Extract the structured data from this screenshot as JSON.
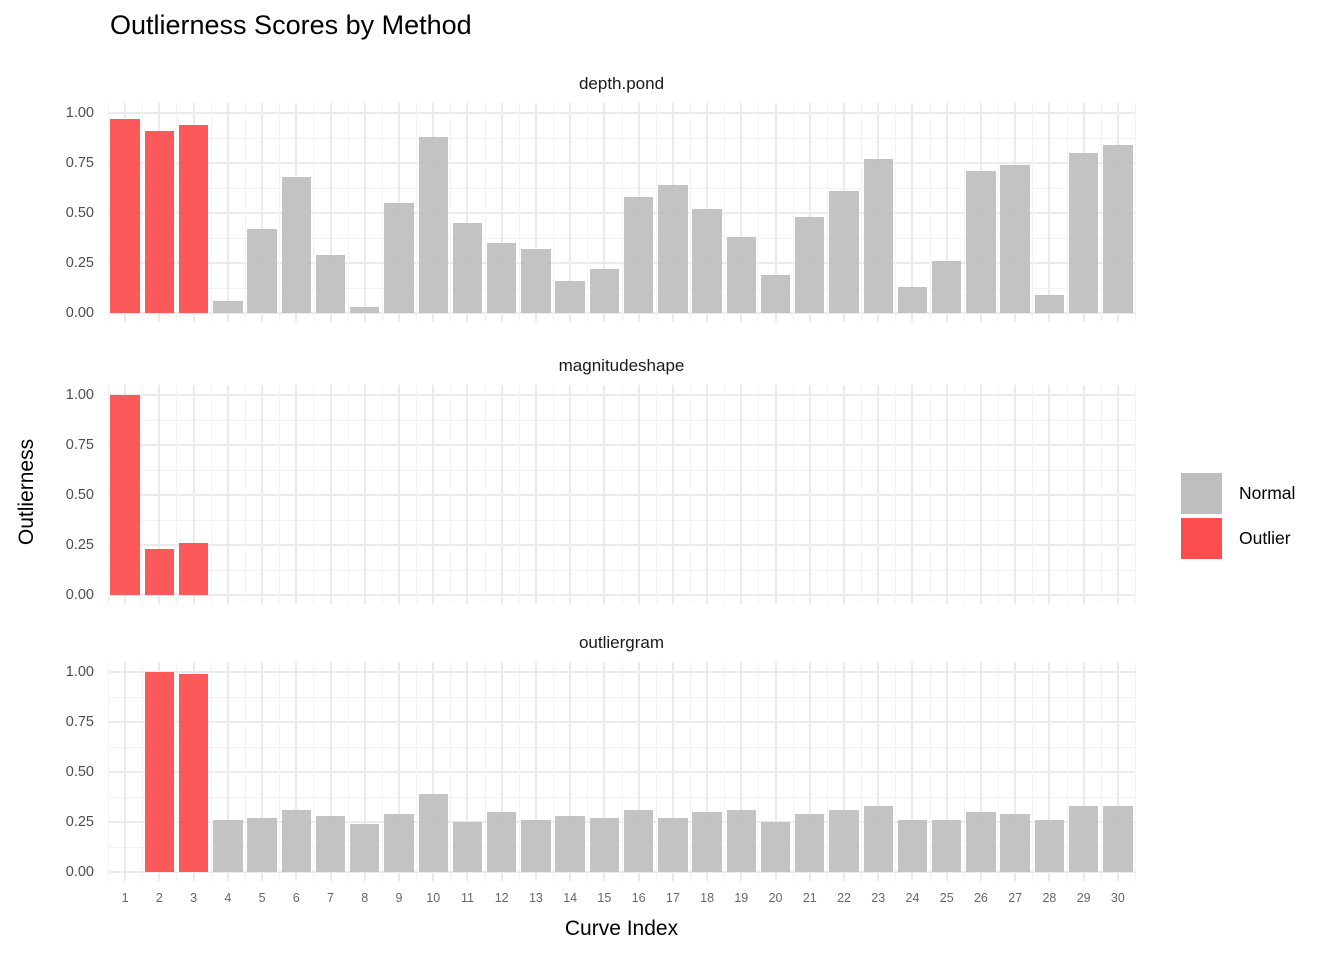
{
  "title": "Outlierness Scores by Method",
  "legend": {
    "items": [
      {
        "label": "Normal",
        "color": "#BEBEBE"
      },
      {
        "label": "Outlier",
        "color": "#FC4E4E"
      }
    ]
  },
  "chart_data": {
    "type": "bar",
    "title": "Outlierness Scores by Method",
    "xlabel": "Curve Index",
    "ylabel": "Outlierness",
    "x": [
      1,
      2,
      3,
      4,
      5,
      6,
      7,
      8,
      9,
      10,
      11,
      12,
      13,
      14,
      15,
      16,
      17,
      18,
      19,
      20,
      21,
      22,
      23,
      24,
      25,
      26,
      27,
      28,
      29,
      30
    ],
    "ylim": [
      0,
      1
    ],
    "yticks": [
      0,
      0.25,
      0.5,
      0.75,
      1
    ],
    "ytick_labels": [
      "0.00",
      "0.25",
      "0.50",
      "0.75",
      "1.00"
    ],
    "grid": true,
    "legend_position": "right",
    "colors": {
      "normal": "#BEBEBE",
      "outlier": "#FC4E4E"
    },
    "facets": [
      {
        "title": "depth.pond",
        "values": [
          0.97,
          0.91,
          0.94,
          0.06,
          0.42,
          0.68,
          0.29,
          0.03,
          0.55,
          0.88,
          0.45,
          0.35,
          0.32,
          0.16,
          0.22,
          0.58,
          0.64,
          0.52,
          0.38,
          0.19,
          0.48,
          0.61,
          0.77,
          0.13,
          0.26,
          0.71,
          0.74,
          0.09,
          0.8,
          0.84
        ],
        "outlier_indices": [
          1,
          2,
          3
        ]
      },
      {
        "title": "magnitudeshape",
        "values": [
          1.0,
          0.23,
          0.26,
          0,
          0,
          0,
          0,
          0,
          0,
          0,
          0,
          0,
          0,
          0,
          0,
          0,
          0,
          0,
          0,
          0,
          0,
          0,
          0,
          0,
          0,
          0,
          0,
          0,
          0,
          0
        ],
        "outlier_indices": [
          1,
          2,
          3
        ]
      },
      {
        "title": "outliergram",
        "values": [
          0,
          1.0,
          0.99,
          0.26,
          0.27,
          0.31,
          0.28,
          0.24,
          0.29,
          0.39,
          0.25,
          0.3,
          0.26,
          0.28,
          0.27,
          0.31,
          0.27,
          0.3,
          0.31,
          0.25,
          0.29,
          0.31,
          0.33,
          0.26,
          0.26,
          0.3,
          0.29,
          0.26,
          0.33,
          0.33
        ],
        "outlier_indices": [
          2,
          3
        ]
      }
    ]
  }
}
